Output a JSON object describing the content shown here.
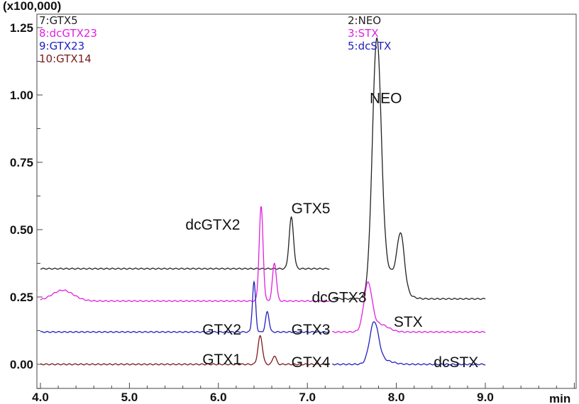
{
  "chart_data": {
    "type": "line",
    "title": "",
    "xlabel": "min",
    "ylabel": "(x100,000)",
    "xlim": [
      4.0,
      10.0
    ],
    "ylim": [
      -0.09,
      1.3
    ],
    "x_ticks": [
      "4.0",
      "5.0",
      "6.0",
      "7.0",
      "8.0",
      "9.0"
    ],
    "x_tick_values": [
      4,
      5,
      6,
      7,
      8,
      9
    ],
    "y_ticks": [
      "0.00",
      "0.25",
      "0.50",
      "0.75",
      "1.00",
      "1.25"
    ],
    "y_tick_values": [
      0,
      0.25,
      0.5,
      0.75,
      1.0,
      1.25
    ],
    "grid": false,
    "legend_left": [
      {
        "label": "7:GTX5",
        "color": "#222222"
      },
      {
        "label": "8:dcGTX23",
        "color": "#e020e0"
      },
      {
        "label": "9:GTX23",
        "color": "#2020c0"
      },
      {
        "label": "10:GTX14",
        "color": "#7a1a1a"
      }
    ],
    "legend_right": [
      {
        "label": "2:NEO",
        "color": "#222222"
      },
      {
        "label": "3:STX",
        "color": "#e020e0"
      },
      {
        "label": "5:dcSTX",
        "color": "#2020c0"
      }
    ],
    "series": [
      {
        "name": "GTX5",
        "color": "#222222",
        "x_range": [
          4.0,
          7.25
        ],
        "baseline": 0.355,
        "peaks": [
          {
            "rt": 6.82,
            "height": 0.19,
            "sigma": 0.025
          }
        ]
      },
      {
        "name": "dcGTX23",
        "color": "#e020e0",
        "x_range": [
          4.0,
          7.25
        ],
        "baseline": 0.235,
        "peaks": [
          {
            "rt": 4.25,
            "height": 0.04,
            "sigma": 0.12
          },
          {
            "rt": 6.48,
            "height": 0.35,
            "sigma": 0.022
          },
          {
            "rt": 6.63,
            "height": 0.14,
            "sigma": 0.022
          }
        ]
      },
      {
        "name": "GTX23",
        "color": "#2020c0",
        "x_range": [
          4.0,
          7.25
        ],
        "baseline": 0.12,
        "peaks": [
          {
            "rt": 6.4,
            "height": 0.185,
            "sigma": 0.018
          },
          {
            "rt": 6.55,
            "height": 0.075,
            "sigma": 0.02
          }
        ]
      },
      {
        "name": "GTX14",
        "color": "#7a1a1a",
        "x_range": [
          4.0,
          7.25
        ],
        "baseline": 0.0,
        "peaks": [
          {
            "rt": 6.47,
            "height": 0.105,
            "sigma": 0.025
          },
          {
            "rt": 6.63,
            "height": 0.032,
            "sigma": 0.02
          }
        ]
      },
      {
        "name": "NEO",
        "color": "#222222",
        "x_range": [
          7.28,
          9.0
        ],
        "baseline": 0.243,
        "peaks": [
          {
            "rt": 7.78,
            "height": 0.92,
            "sigma": 0.05
          },
          {
            "rt": 7.92,
            "height": 0.1,
            "sigma": 0.12
          },
          {
            "rt": 8.05,
            "height": 0.19,
            "sigma": 0.04
          }
        ]
      },
      {
        "name": "STX",
        "color": "#e020e0",
        "x_range": [
          7.28,
          9.0
        ],
        "baseline": 0.12,
        "peaks": [
          {
            "rt": 7.68,
            "height": 0.17,
            "sigma": 0.045
          },
          {
            "rt": 7.8,
            "height": 0.03,
            "sigma": 0.1
          }
        ]
      },
      {
        "name": "dcSTX",
        "color": "#2020c0",
        "x_range": [
          7.28,
          9.0
        ],
        "baseline": 0.0,
        "peaks": [
          {
            "rt": 7.75,
            "height": 0.15,
            "sigma": 0.05
          },
          {
            "rt": 7.85,
            "height": 0.015,
            "sigma": 0.1
          }
        ]
      }
    ],
    "annotations": [
      {
        "text": "NEO",
        "x": 7.7,
        "y": 0.97
      },
      {
        "text": "dcGTX2",
        "x": 5.63,
        "y": 0.5
      },
      {
        "text": "GTX5",
        "x": 6.82,
        "y": 0.56
      },
      {
        "text": "dcGTX3",
        "x": 7.05,
        "y": 0.23
      },
      {
        "text": "GTX2",
        "x": 5.82,
        "y": 0.11
      },
      {
        "text": "GTX3",
        "x": 6.82,
        "y": 0.11
      },
      {
        "text": "STX",
        "x": 7.97,
        "y": 0.14
      },
      {
        "text": "GTX1",
        "x": 5.82,
        "y": 0.0
      },
      {
        "text": "GTX4",
        "x": 6.82,
        "y": -0.01
      },
      {
        "text": "dcSTX",
        "x": 8.42,
        "y": -0.01
      }
    ]
  }
}
